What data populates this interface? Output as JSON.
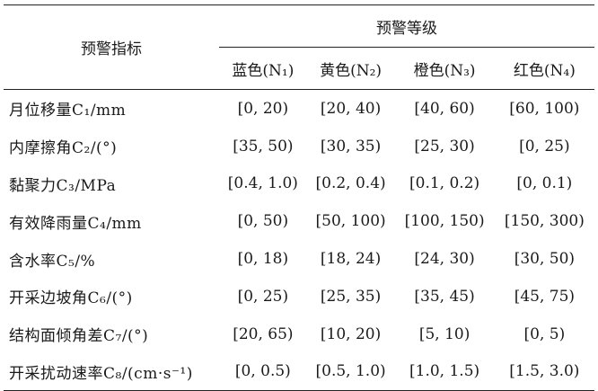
{
  "table": {
    "indicator_header": "预警指标",
    "group_header": "预警等级",
    "levels": [
      "蓝色(N₁)",
      "黄色(N₂)",
      "橙色(N₃)",
      "红色(N₄)"
    ],
    "rows": [
      {
        "indicator": "月位移量C₁/mm",
        "values": [
          "[0, 20)",
          "[20, 40)",
          "[40, 60)",
          "[60, 100)"
        ]
      },
      {
        "indicator": "内摩擦角C₂/(°)",
        "values": [
          "[35, 50)",
          "[30, 35)",
          "[25, 30)",
          "[0, 25)"
        ]
      },
      {
        "indicator": "黏聚力C₃/MPa",
        "values": [
          "[0.4, 1.0)",
          "[0.2, 0.4)",
          "[0.1, 0.2)",
          "[0, 0.1)"
        ]
      },
      {
        "indicator": "有效降雨量C₄/mm",
        "values": [
          "[0, 50)",
          "[50, 100)",
          "[100, 150)",
          "[150, 300)"
        ]
      },
      {
        "indicator": "含水率C₅/%",
        "values": [
          "[0, 18)",
          "[18, 24)",
          "[24, 30)",
          "[30, 50)"
        ]
      },
      {
        "indicator": "开采边坡角C₆/(°)",
        "values": [
          "[0, 25)",
          "[25, 35)",
          "[35, 45)",
          "[45, 75)"
        ]
      },
      {
        "indicator": "结构面倾角差C₇/(°)",
        "values": [
          "[20, 65)",
          "[10, 20)",
          "[5, 10)",
          "[0, 5)"
        ]
      },
      {
        "indicator": "开采扰动速率C₈/(cm·s⁻¹)",
        "values": [
          "[0, 0.5)",
          "[0.5, 1.0)",
          "[1.0, 1.5)",
          "[1.5, 3.0)"
        ]
      }
    ]
  }
}
